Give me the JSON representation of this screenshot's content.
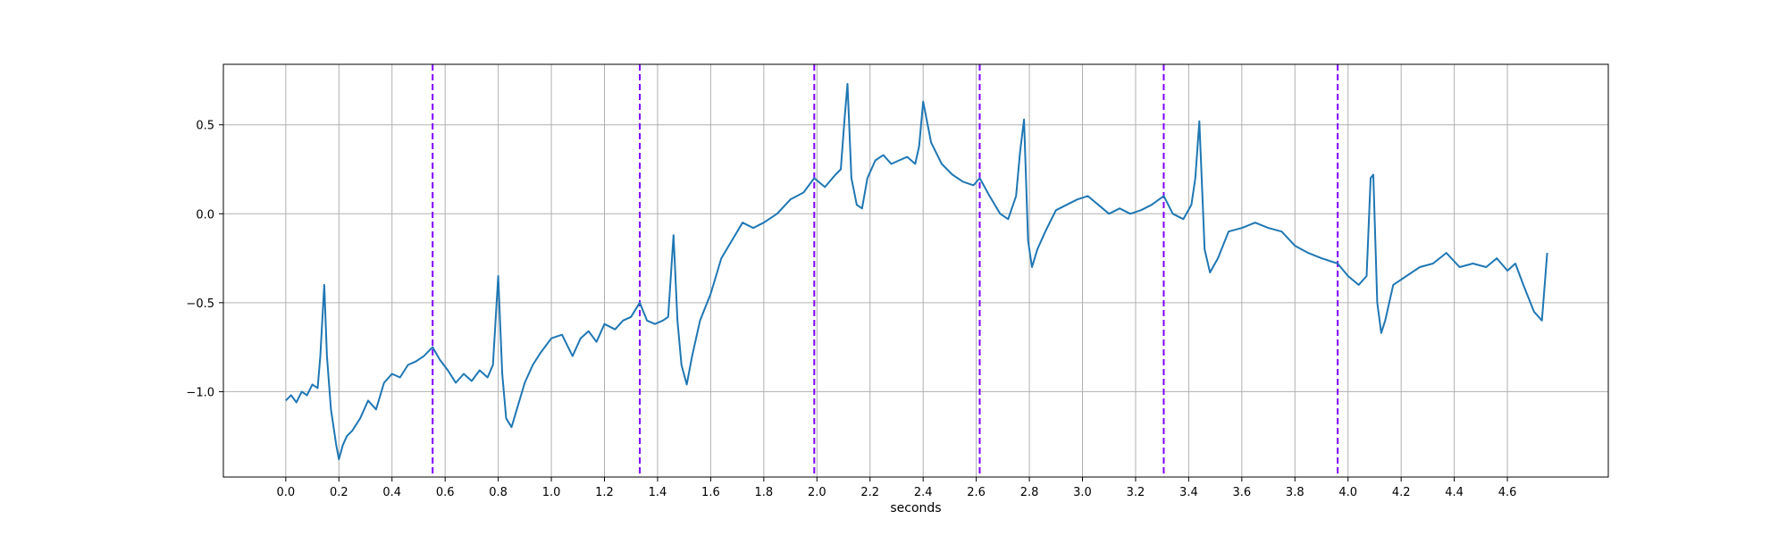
{
  "chart_data": {
    "type": "line",
    "title": "",
    "xlabel": "seconds",
    "ylabel": "",
    "xlim": [
      -0.235,
      4.98
    ],
    "ylim": [
      -1.48,
      0.84
    ],
    "grid": true,
    "xticks": [
      0.0,
      0.2,
      0.4,
      0.6,
      0.8,
      1.0,
      1.2,
      1.4,
      1.6,
      1.8,
      2.0,
      2.2,
      2.4,
      2.6,
      2.8,
      3.0,
      3.2,
      3.4,
      3.6,
      3.8,
      4.0,
      4.2,
      4.4,
      4.6
    ],
    "xtick_labels": [
      "0.0",
      "0.2",
      "0.4",
      "0.6",
      "0.8",
      "1.0",
      "1.2",
      "1.4",
      "1.6",
      "1.8",
      "2.0",
      "2.2",
      "2.4",
      "2.6",
      "2.8",
      "3.0",
      "3.2",
      "3.4",
      "3.6",
      "3.8",
      "4.0",
      "4.2",
      "4.4",
      "4.6"
    ],
    "yticks": [
      -1.0,
      -0.5,
      0.0,
      0.5
    ],
    "ytick_labels": [
      "−1.0",
      "−0.5",
      "0.0",
      "0.5"
    ],
    "colors": {
      "line": "#1f77b4",
      "vlines": "#7f00ff",
      "grid": "#b0b0b0"
    },
    "vlines": [
      0.553,
      1.333,
      1.99,
      2.613,
      3.306,
      3.961
    ],
    "series": [
      {
        "x": [
          0.0,
          0.02,
          0.04,
          0.06,
          0.08,
          0.1,
          0.12,
          0.13,
          0.145,
          0.155,
          0.17,
          0.19,
          0.2,
          0.215,
          0.23,
          0.25,
          0.28,
          0.31,
          0.34,
          0.37,
          0.4,
          0.43,
          0.46,
          0.49,
          0.52,
          0.553,
          0.58,
          0.61,
          0.64,
          0.67,
          0.7,
          0.73,
          0.76,
          0.78,
          0.8,
          0.815,
          0.83,
          0.85,
          0.87,
          0.9,
          0.93,
          0.96,
          1.0,
          1.04,
          1.08,
          1.11,
          1.14,
          1.17,
          1.2,
          1.24,
          1.27,
          1.3,
          1.333,
          1.36,
          1.39,
          1.42,
          1.44,
          1.46,
          1.475,
          1.49,
          1.51,
          1.53,
          1.56,
          1.6,
          1.64,
          1.68,
          1.72,
          1.76,
          1.8,
          1.85,
          1.9,
          1.95,
          1.99,
          2.03,
          2.07,
          2.09,
          2.105,
          2.115,
          2.13,
          2.15,
          2.17,
          2.19,
          2.22,
          2.25,
          2.28,
          2.31,
          2.34,
          2.37,
          2.385,
          2.4,
          2.43,
          2.47,
          2.51,
          2.55,
          2.59,
          2.613,
          2.65,
          2.69,
          2.72,
          2.75,
          2.765,
          2.78,
          2.795,
          2.81,
          2.83,
          2.86,
          2.9,
          2.94,
          2.98,
          3.02,
          3.06,
          3.1,
          3.14,
          3.18,
          3.22,
          3.26,
          3.306,
          3.34,
          3.38,
          3.41,
          3.425,
          3.44,
          3.46,
          3.48,
          3.51,
          3.55,
          3.6,
          3.65,
          3.7,
          3.75,
          3.8,
          3.85,
          3.9,
          3.961,
          4.0,
          4.04,
          4.07,
          4.085,
          4.095,
          4.11,
          4.125,
          4.14,
          4.17,
          4.22,
          4.27,
          4.32,
          4.37,
          4.42,
          4.47,
          4.52,
          4.56,
          4.6,
          4.63,
          4.66,
          4.7,
          4.73,
          4.75
        ],
        "y": [
          -1.05,
          -1.02,
          -1.06,
          -1.0,
          -1.02,
          -0.96,
          -0.98,
          -0.8,
          -0.4,
          -0.8,
          -1.1,
          -1.3,
          -1.38,
          -1.3,
          -1.25,
          -1.22,
          -1.15,
          -1.05,
          -1.1,
          -0.95,
          -0.9,
          -0.92,
          -0.85,
          -0.83,
          -0.8,
          -0.75,
          -0.82,
          -0.88,
          -0.95,
          -0.9,
          -0.94,
          -0.88,
          -0.92,
          -0.85,
          -0.35,
          -0.9,
          -1.15,
          -1.2,
          -1.1,
          -0.95,
          -0.85,
          -0.78,
          -0.7,
          -0.68,
          -0.8,
          -0.7,
          -0.66,
          -0.72,
          -0.62,
          -0.65,
          -0.6,
          -0.58,
          -0.5,
          -0.6,
          -0.62,
          -0.6,
          -0.58,
          -0.12,
          -0.6,
          -0.85,
          -0.96,
          -0.8,
          -0.6,
          -0.45,
          -0.25,
          -0.15,
          -0.05,
          -0.08,
          -0.05,
          0.0,
          0.08,
          0.12,
          0.2,
          0.15,
          0.22,
          0.25,
          0.55,
          0.73,
          0.2,
          0.05,
          0.03,
          0.2,
          0.3,
          0.33,
          0.28,
          0.3,
          0.32,
          0.28,
          0.38,
          0.63,
          0.4,
          0.28,
          0.22,
          0.18,
          0.16,
          0.2,
          0.1,
          0.0,
          -0.03,
          0.1,
          0.35,
          0.53,
          -0.15,
          -0.3,
          -0.2,
          -0.1,
          0.02,
          0.05,
          0.08,
          0.1,
          0.05,
          0.0,
          0.03,
          0.0,
          0.02,
          0.05,
          0.1,
          0.0,
          -0.03,
          0.05,
          0.2,
          0.52,
          -0.2,
          -0.33,
          -0.25,
          -0.1,
          -0.08,
          -0.05,
          -0.08,
          -0.1,
          -0.18,
          -0.22,
          -0.25,
          -0.28,
          -0.35,
          -0.4,
          -0.35,
          0.2,
          0.22,
          -0.5,
          -0.67,
          -0.6,
          -0.4,
          -0.35,
          -0.3,
          -0.28,
          -0.22,
          -0.3,
          -0.28,
          -0.3,
          -0.25,
          -0.32,
          -0.28,
          -0.4,
          -0.55,
          -0.6,
          -0.22
        ]
      }
    ]
  }
}
